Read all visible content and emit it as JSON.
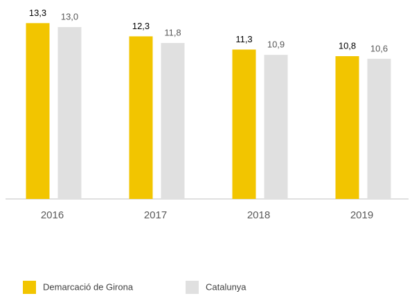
{
  "chart_data": {
    "type": "bar",
    "categories": [
      "2016",
      "2017",
      "2018",
      "2019"
    ],
    "series": [
      {
        "name": "Demarcació de Girona",
        "color": "#f2c500",
        "values": [
          13.3,
          12.3,
          11.3,
          10.8
        ],
        "value_labels": [
          "13,3",
          "12,3",
          "11,3",
          "10,8"
        ]
      },
      {
        "name": "Catalunya",
        "color": "#e0e0e0",
        "values": [
          13.0,
          11.8,
          10.9,
          10.6
        ],
        "value_labels": [
          "13,0",
          "11,8",
          "10,9",
          "10,6"
        ]
      }
    ],
    "ylim": [
      0,
      14
    ]
  }
}
